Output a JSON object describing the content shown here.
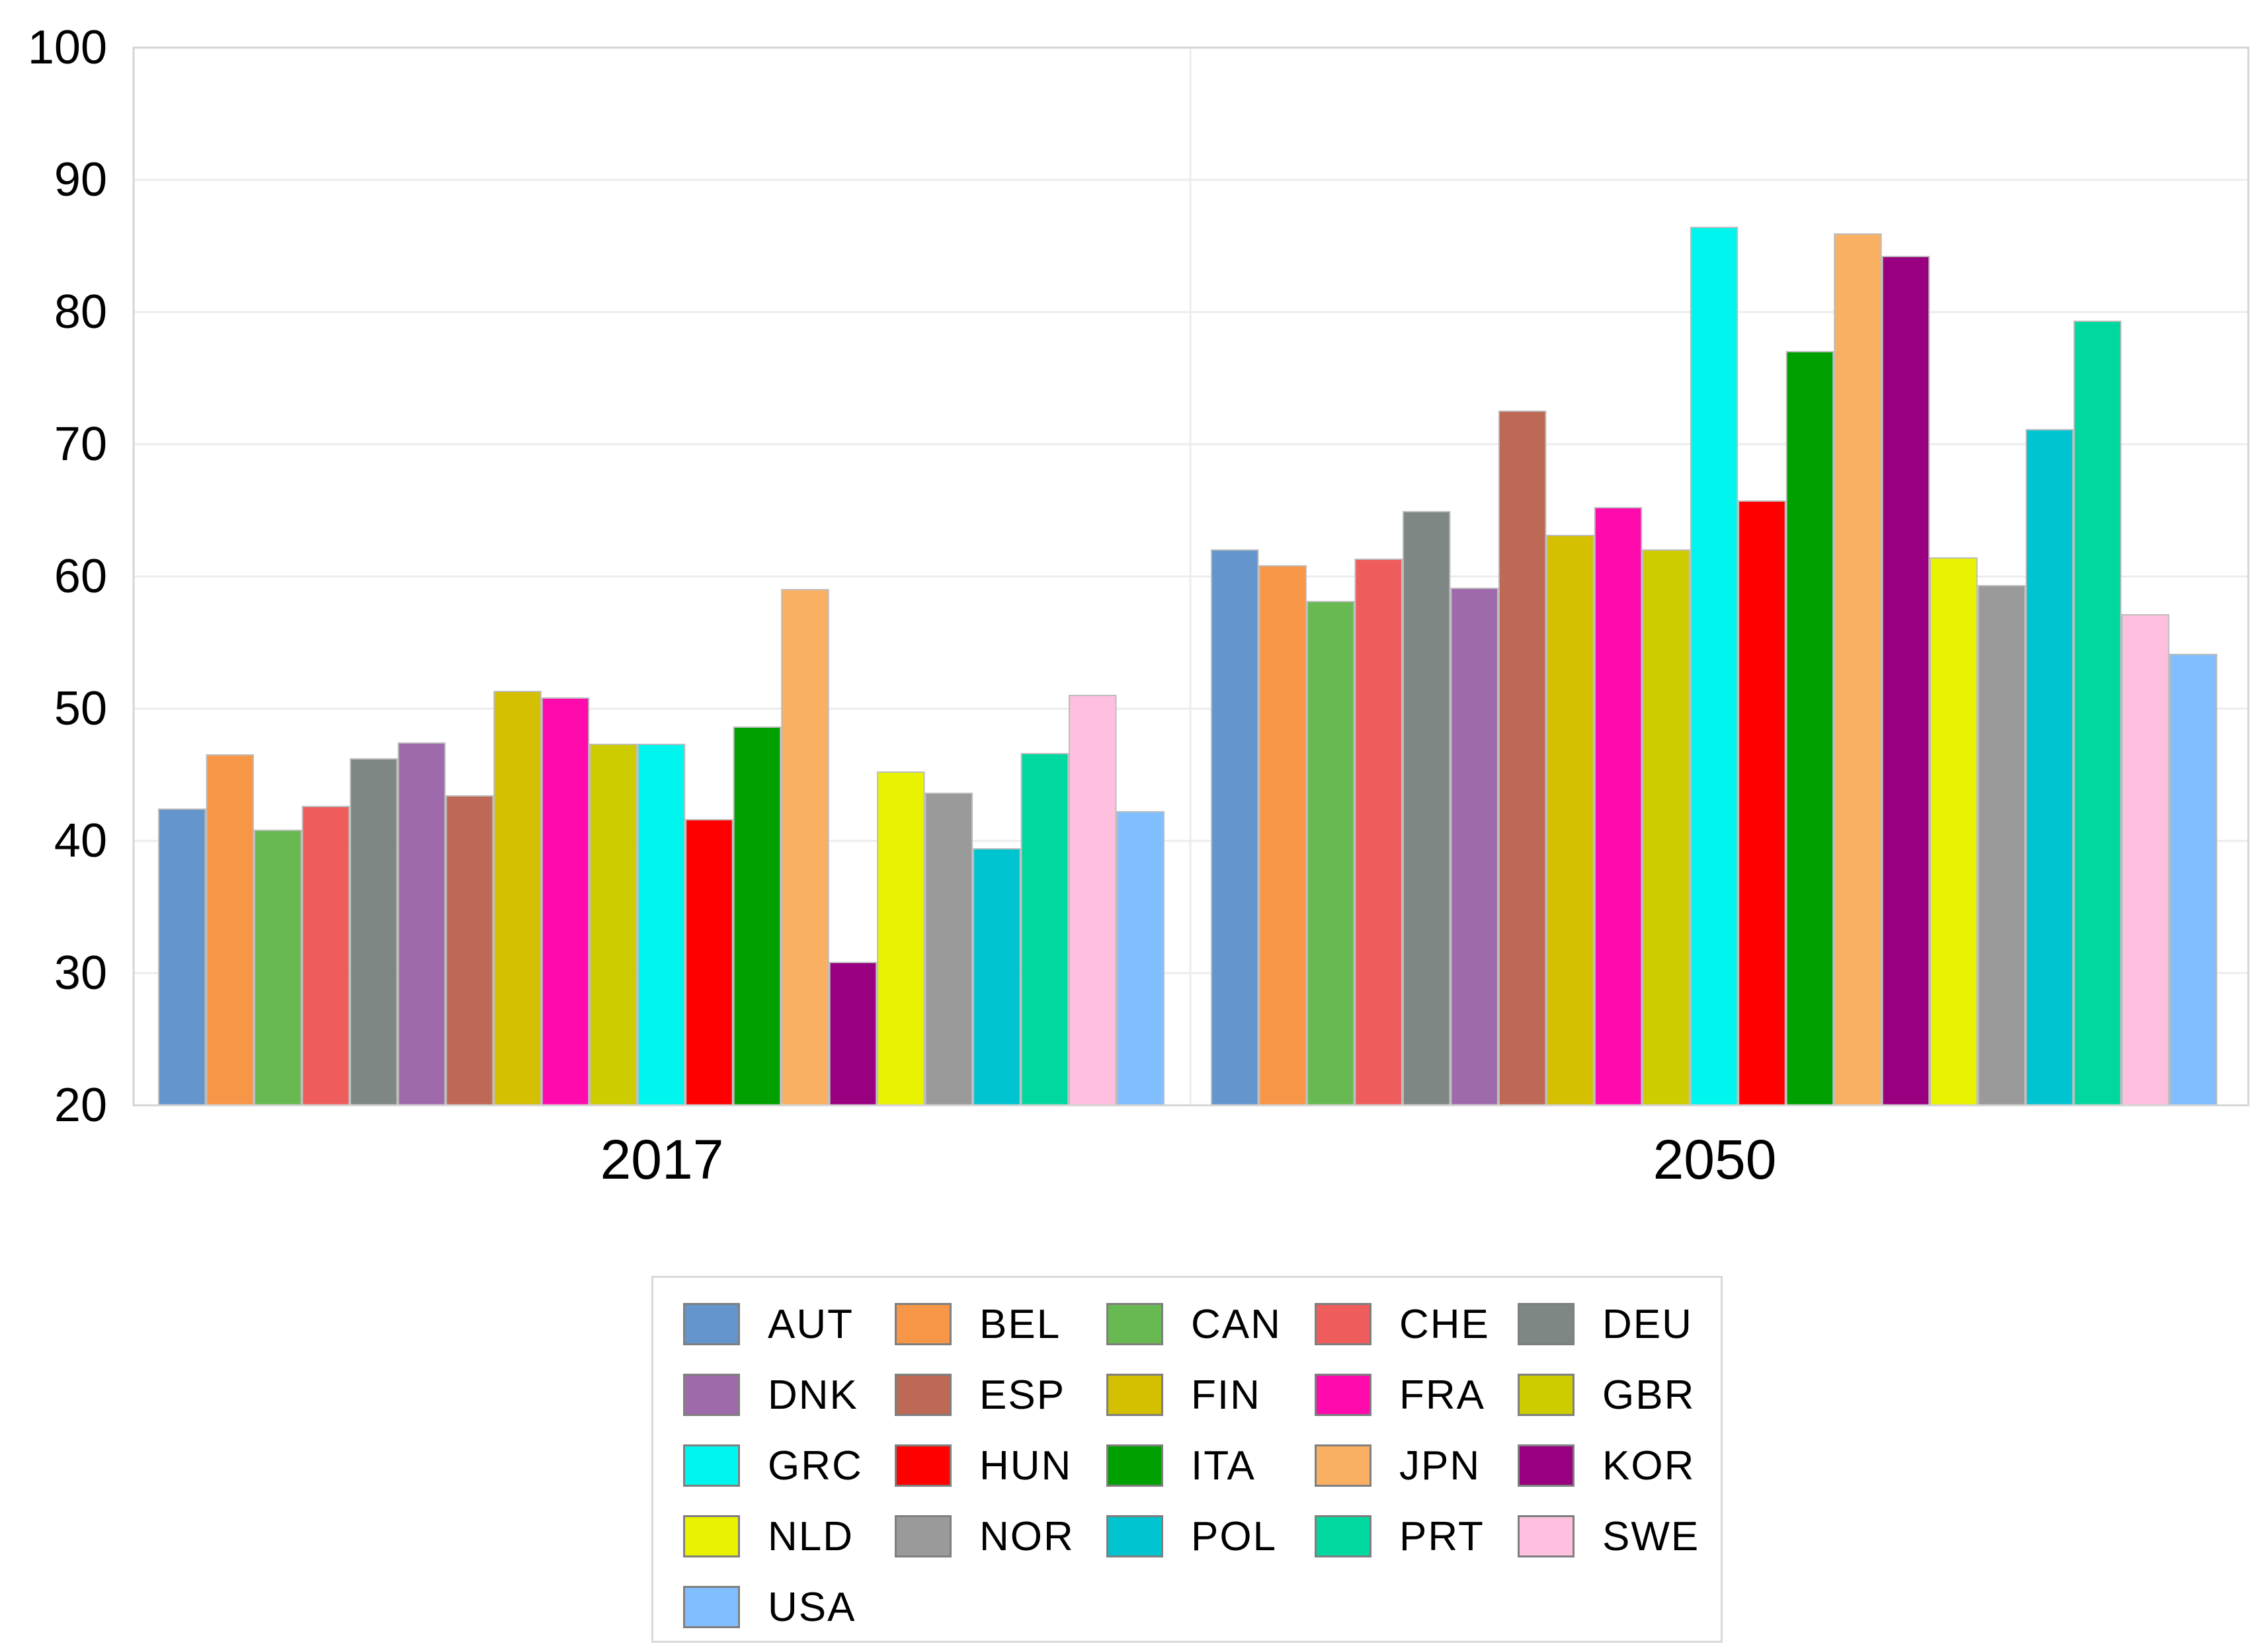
{
  "chart_data": {
    "type": "bar",
    "title": "",
    "xlabel": "",
    "ylabel": "",
    "ylim": [
      20,
      100
    ],
    "yticks": [
      20,
      30,
      40,
      50,
      60,
      70,
      80,
      90,
      100
    ],
    "grid": true,
    "legend_position": "bottom-center",
    "categories": [
      "2017",
      "2050"
    ],
    "series": [
      {
        "name": "AUT",
        "color": "#6495cd",
        "values": [
          42.4,
          62.0
        ]
      },
      {
        "name": "BEL",
        "color": "#f79646",
        "values": [
          46.5,
          60.8
        ]
      },
      {
        "name": "CAN",
        "color": "#69b953",
        "values": [
          40.8,
          58.1
        ]
      },
      {
        "name": "CHE",
        "color": "#ee5c5c",
        "values": [
          42.6,
          61.3
        ]
      },
      {
        "name": "DEU",
        "color": "#7f8784",
        "values": [
          46.2,
          64.9
        ]
      },
      {
        "name": "DNK",
        "color": "#9f6aac",
        "values": [
          47.4,
          59.1
        ]
      },
      {
        "name": "ESP",
        "color": "#bd6955",
        "values": [
          43.4,
          72.5
        ]
      },
      {
        "name": "FIN",
        "color": "#d4c000",
        "values": [
          51.3,
          63.1
        ]
      },
      {
        "name": "FRA",
        "color": "#ff0aac",
        "values": [
          50.8,
          65.2
        ]
      },
      {
        "name": "GBR",
        "color": "#cccc00",
        "values": [
          47.3,
          62.0
        ]
      },
      {
        "name": "GRC",
        "color": "#00f5ee",
        "values": [
          47.3,
          86.4
        ]
      },
      {
        "name": "HUN",
        "color": "#ff0000",
        "values": [
          41.6,
          65.7
        ]
      },
      {
        "name": "ITA",
        "color": "#00a000",
        "values": [
          48.6,
          77.0
        ]
      },
      {
        "name": "JPN",
        "color": "#f9b062",
        "values": [
          59.0,
          85.9
        ]
      },
      {
        "name": "KOR",
        "color": "#990080",
        "values": [
          30.8,
          84.2
        ]
      },
      {
        "name": "NLD",
        "color": "#e9f200",
        "values": [
          45.2,
          61.4
        ]
      },
      {
        "name": "NOR",
        "color": "#9a9a9a",
        "values": [
          43.6,
          59.3
        ]
      },
      {
        "name": "POL",
        "color": "#00c4d0",
        "values": [
          39.4,
          71.1
        ]
      },
      {
        "name": "PRT",
        "color": "#00d8a0",
        "values": [
          46.6,
          79.3
        ]
      },
      {
        "name": "SWE",
        "color": "#ffbfde",
        "values": [
          51.0,
          57.1
        ]
      },
      {
        "name": "USA",
        "color": "#80beff",
        "values": [
          42.2,
          54.1
        ]
      }
    ]
  }
}
